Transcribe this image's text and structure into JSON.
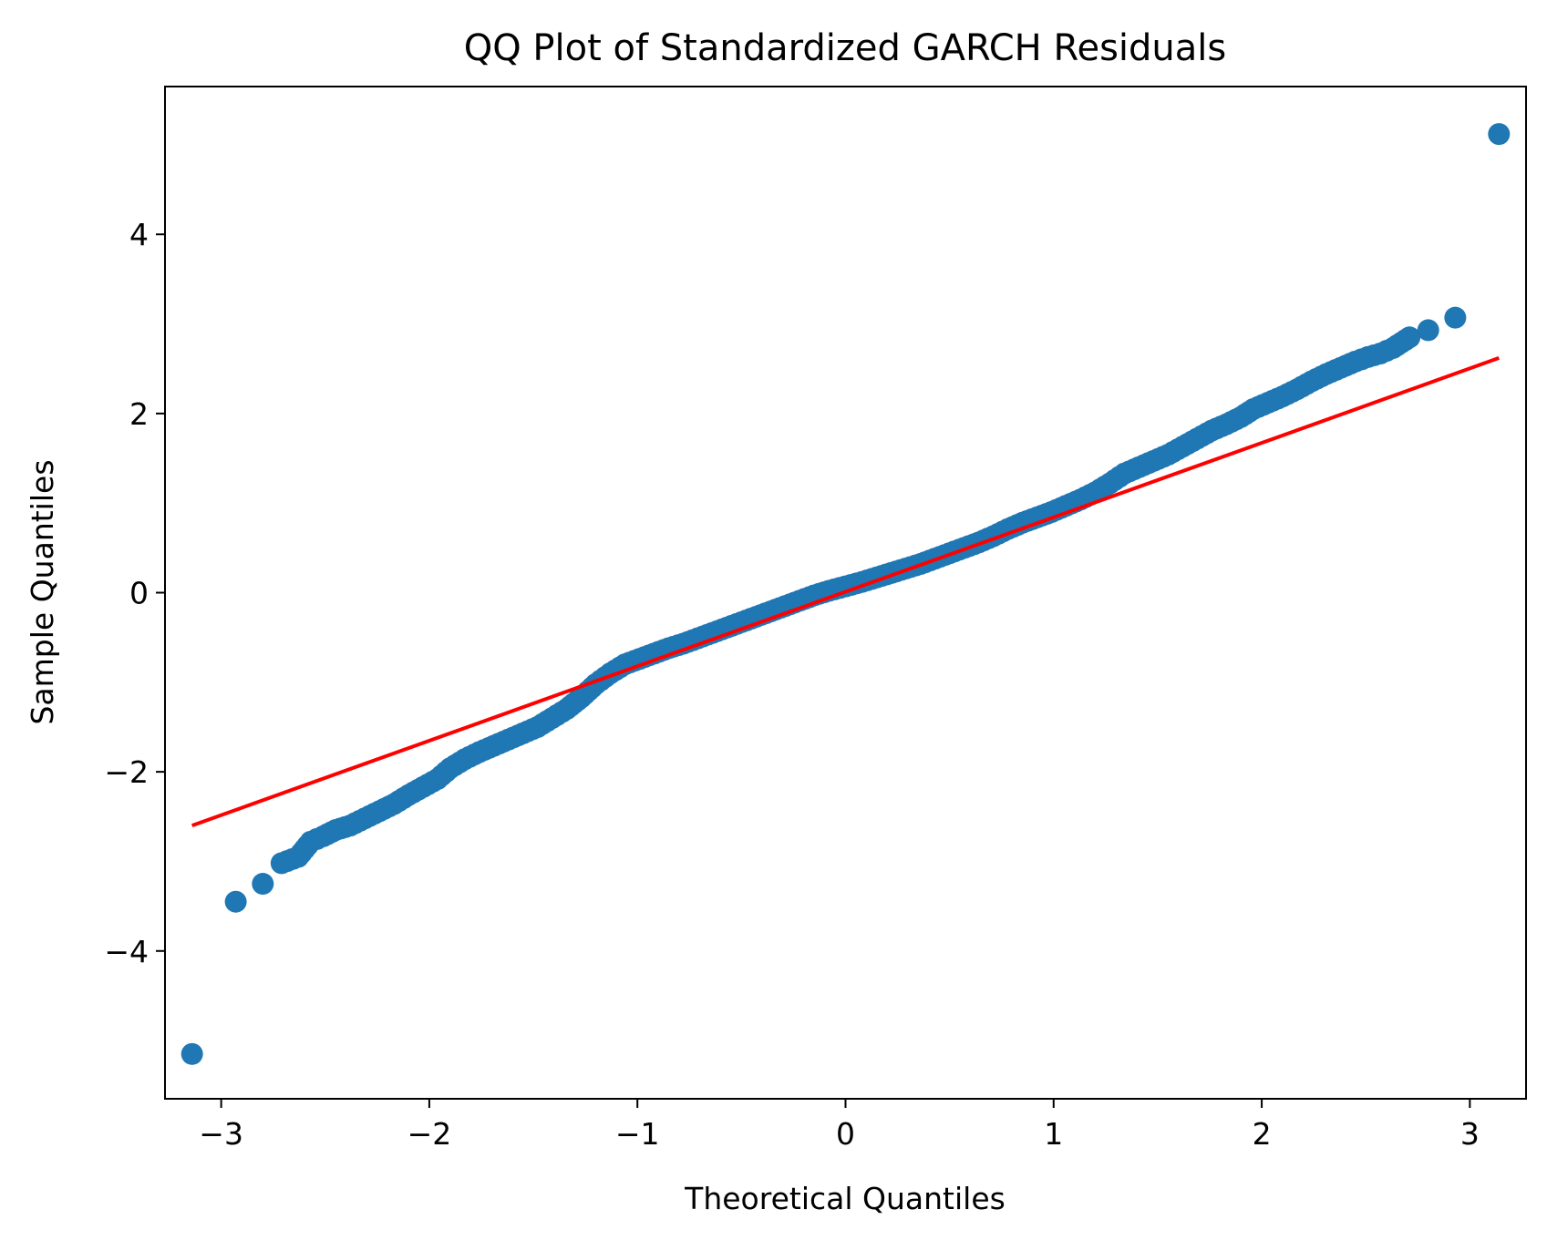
{
  "chart_data": {
    "type": "scatter",
    "title": "QQ Plot of Standardized GARCH Residuals",
    "xlabel": "Theoretical Quantiles",
    "ylabel": "Sample Quantiles",
    "xlim": [
      -3.27,
      3.27
    ],
    "ylim": [
      -5.65,
      5.65
    ],
    "xticks": [
      -3,
      -2,
      -1,
      0,
      1,
      2,
      3
    ],
    "xtick_labels": [
      "−3",
      "−2",
      "−1",
      "0",
      "1",
      "2",
      "3"
    ],
    "yticks": [
      -4,
      -2,
      0,
      2,
      4
    ],
    "ytick_labels": [
      "−4",
      "−2",
      "0",
      "2",
      "4"
    ],
    "grid": false,
    "marker_color": "#1f77b4",
    "line_color": "#ff0000",
    "reference_line": {
      "x": [
        -3.14,
        3.14
      ],
      "y": [
        -2.6,
        2.62
      ]
    },
    "points": {
      "x": [
        -3.14,
        -2.93,
        -2.8,
        -2.71,
        -2.63,
        -2.57,
        -2.51,
        -2.45,
        -2.38,
        -2.31,
        -2.24,
        -2.17,
        -2.1,
        -2.03,
        -1.96,
        -1.9,
        -1.83,
        -1.76,
        -1.69,
        -1.62,
        -1.55,
        -1.48,
        -1.41,
        -1.34,
        -1.27,
        -1.2,
        -1.13,
        -1.06,
        -0.99,
        -0.92,
        -0.85,
        -0.78,
        -0.71,
        -0.64,
        -0.57,
        -0.5,
        -0.43,
        -0.36,
        -0.29,
        -0.22,
        -0.15,
        -0.08,
        0.0,
        0.08,
        0.15,
        0.22,
        0.29,
        0.36,
        0.43,
        0.5,
        0.57,
        0.64,
        0.71,
        0.78,
        0.85,
        0.92,
        0.99,
        1.06,
        1.13,
        1.2,
        1.27,
        1.34,
        1.41,
        1.48,
        1.55,
        1.62,
        1.69,
        1.76,
        1.83,
        1.9,
        1.96,
        2.03,
        2.1,
        2.17,
        2.24,
        2.31,
        2.38,
        2.45,
        2.51,
        2.57,
        2.63,
        2.71,
        2.8,
        2.93,
        3.14
      ],
      "y": [
        -5.15,
        -3.45,
        -3.25,
        -3.02,
        -2.95,
        -2.78,
        -2.72,
        -2.65,
        -2.6,
        -2.52,
        -2.44,
        -2.36,
        -2.26,
        -2.17,
        -2.08,
        -1.96,
        -1.86,
        -1.78,
        -1.71,
        -1.64,
        -1.57,
        -1.5,
        -1.4,
        -1.3,
        -1.17,
        -1.02,
        -0.9,
        -0.8,
        -0.74,
        -0.68,
        -0.62,
        -0.57,
        -0.51,
        -0.45,
        -0.39,
        -0.33,
        -0.27,
        -0.21,
        -0.15,
        -0.09,
        -0.03,
        0.02,
        0.07,
        0.12,
        0.17,
        0.22,
        0.27,
        0.32,
        0.38,
        0.44,
        0.5,
        0.56,
        0.63,
        0.71,
        0.78,
        0.84,
        0.9,
        0.97,
        1.04,
        1.12,
        1.22,
        1.33,
        1.4,
        1.47,
        1.54,
        1.63,
        1.72,
        1.81,
        1.88,
        1.96,
        2.05,
        2.12,
        2.19,
        2.27,
        2.36,
        2.44,
        2.51,
        2.58,
        2.63,
        2.67,
        2.73,
        2.85,
        2.93,
        3.07,
        5.12
      ]
    }
  }
}
